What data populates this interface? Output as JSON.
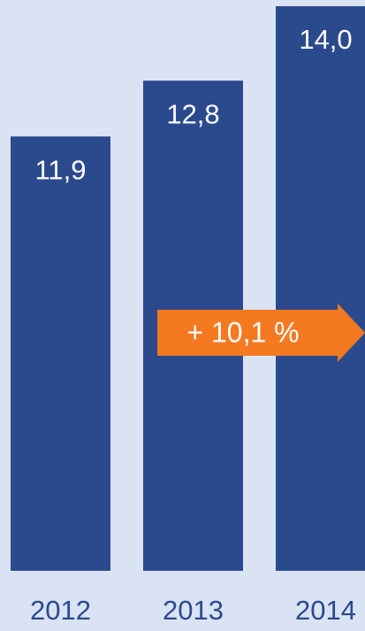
{
  "chart_data": {
    "type": "bar",
    "categories": [
      "2012",
      "2013",
      "2014"
    ],
    "values": [
      11.9,
      12.8,
      14.0
    ],
    "value_labels": [
      "11,9",
      "12,8",
      "14,0"
    ],
    "color": "#2b4a8e",
    "ylim": [
      4.9,
      14.1
    ],
    "annotation": {
      "text": "+ 10,1 %",
      "color": "#f47920"
    }
  }
}
